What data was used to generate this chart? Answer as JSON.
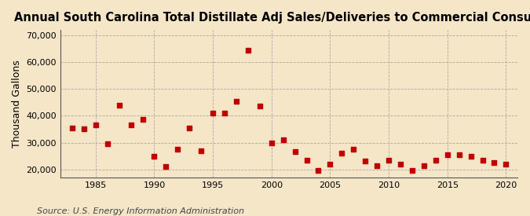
{
  "title": "Annual South Carolina Total Distillate Adj Sales/Deliveries to Commercial Consumers",
  "ylabel": "Thousand Gallons",
  "source": "Source: U.S. Energy Information Administration",
  "background_color": "#f5e6c8",
  "marker_color": "#c00000",
  "years": [
    1983,
    1984,
    1985,
    1986,
    1987,
    1988,
    1989,
    1990,
    1991,
    1992,
    1993,
    1994,
    1995,
    1996,
    1997,
    1998,
    1999,
    2000,
    2001,
    2002,
    2003,
    2004,
    2005,
    2006,
    2007,
    2008,
    2009,
    2010,
    2011,
    2012,
    2013,
    2014,
    2015,
    2016,
    2017,
    2018,
    2019,
    2020
  ],
  "values": [
    35500,
    35000,
    36500,
    29500,
    44000,
    36500,
    38500,
    25000,
    21000,
    27500,
    35500,
    27000,
    41000,
    41000,
    45500,
    64500,
    43500,
    30000,
    31000,
    26500,
    23500,
    19500,
    22000,
    26000,
    27500,
    23000,
    21500,
    23500,
    22000,
    19500,
    21500,
    23500,
    25500,
    25500,
    25000,
    23500,
    22500,
    22000
  ],
  "xlim": [
    1982,
    2021
  ],
  "ylim": [
    17000,
    72000
  ],
  "yticks": [
    20000,
    30000,
    40000,
    50000,
    60000,
    70000
  ],
  "xticks": [
    1985,
    1990,
    1995,
    2000,
    2005,
    2010,
    2015,
    2020
  ],
  "grid_color": "#999999",
  "title_fontsize": 10.5,
  "ylabel_fontsize": 9,
  "source_fontsize": 8
}
